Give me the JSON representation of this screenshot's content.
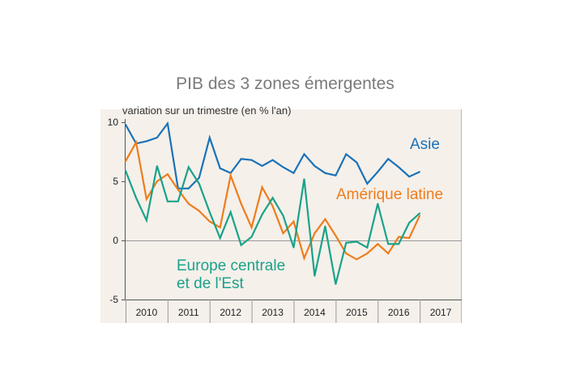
{
  "chart_data": {
    "type": "line",
    "title": "PIB des 3 zones émergentes",
    "ylabel": "variation sur un trimestre (en % l'an)",
    "ylim": [
      -5,
      10
    ],
    "yticks": [
      10,
      5,
      0,
      -5
    ],
    "xlim": [
      2010,
      2018
    ],
    "xticks": [
      "2010",
      "2011",
      "2012",
      "2013",
      "2014",
      "2015",
      "2016",
      "2017"
    ],
    "grid": false,
    "zero_line": true,
    "series": [
      {
        "name": "Asie",
        "color": "#1a72b8",
        "x_start": 2010.0,
        "step": 0.25,
        "values": [
          9.8,
          8.2,
          8.4,
          8.7,
          9.9,
          4.4,
          4.4,
          5.3,
          8.7,
          6.1,
          5.7,
          6.9,
          6.8,
          6.3,
          6.8,
          6.2,
          5.7,
          7.3,
          6.3,
          5.7,
          5.5,
          7.3,
          6.6,
          4.8,
          5.8,
          6.9,
          6.2,
          5.4,
          5.8
        ]
      },
      {
        "name": "Amérique latine",
        "color": "#ef7d1a",
        "x_start": 2010.0,
        "step": 0.25,
        "values": [
          6.7,
          8.3,
          3.5,
          5.0,
          5.6,
          4.3,
          3.1,
          2.5,
          1.6,
          1.1,
          5.5,
          3.1,
          1.1,
          4.5,
          2.9,
          0.6,
          1.6,
          -1.5,
          0.6,
          1.8,
          0.4,
          -1.1,
          -1.6,
          -1.1,
          -0.3,
          -1.1,
          0.3,
          0.2,
          2.1
        ]
      },
      {
        "name": "Europe centrale et de l'Est",
        "label_lines": [
          "Europe centrale",
          "et de l'Est"
        ],
        "color": "#1aa28a",
        "x_start": 2010.0,
        "step": 0.25,
        "values": [
          5.9,
          3.6,
          1.7,
          6.3,
          3.3,
          3.3,
          6.2,
          4.8,
          2.4,
          0.2,
          2.4,
          -0.4,
          0.3,
          2.2,
          3.6,
          2.1,
          -0.6,
          5.2,
          -3.0,
          1.2,
          -3.7,
          -0.2,
          -0.1,
          -0.6,
          3.1,
          -0.3,
          -0.3,
          1.5,
          2.3
        ]
      }
    ]
  }
}
